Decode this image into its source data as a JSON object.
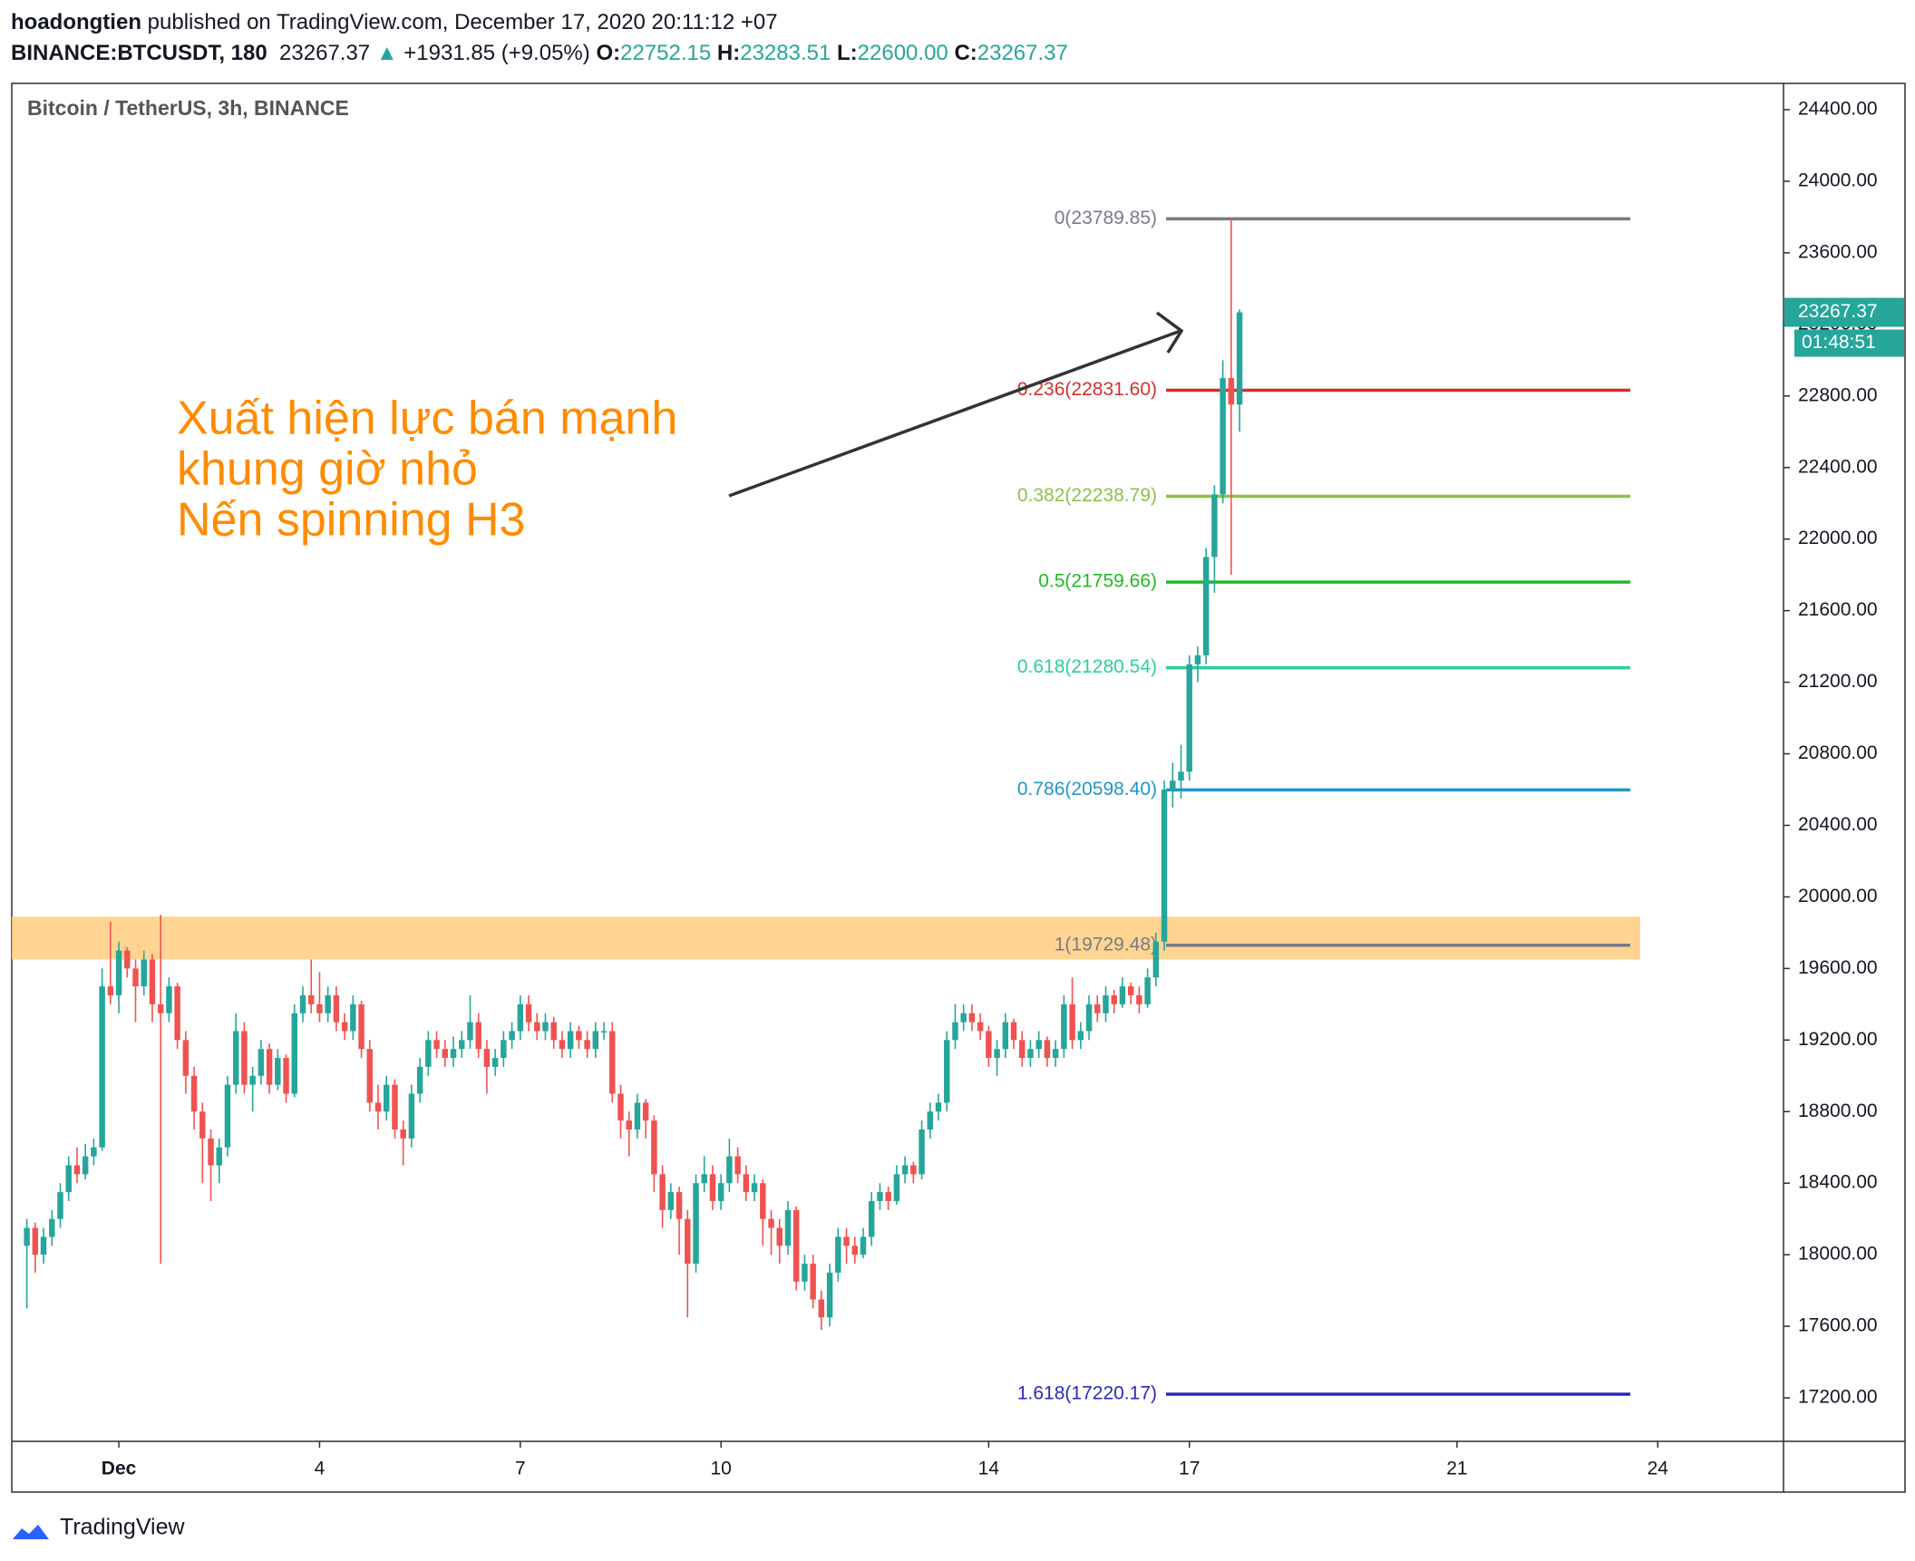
{
  "header": {
    "user": "hoadongtien",
    "published": "published on TradingView.com, December 17, 2020 20:11:12 +07",
    "symbol": "BINANCE:BTCUSDT, 180",
    "last": "23267.37",
    "arrow": "▲",
    "change": "+1931.85 (+9.05%)",
    "o_label": "O:",
    "open": "22752.15",
    "h_label": "H:",
    "high": "23283.51",
    "l_label": "L:",
    "low": "22600.00",
    "c_label": "C:",
    "close": "23267.37"
  },
  "chart_data": {
    "type": "candlestick",
    "title": "Bitcoin / TetherUS, 3h, BINANCE",
    "up_color": "#26a69a",
    "down_color": "#ef5350",
    "xlim": [
      -0.6,
      25.88
    ],
    "xticks": [
      {
        "value": 1,
        "label": "Dec"
      },
      4,
      7,
      10,
      14,
      17,
      21,
      24
    ],
    "ylim": [
      16957,
      24547
    ],
    "yticks": [
      {
        "value": 17200,
        "label": "17200.00"
      },
      {
        "value": 17600,
        "label": "17600.00"
      },
      {
        "value": 18000,
        "label": "18000.00"
      },
      {
        "value": 18400,
        "label": "18400.00"
      },
      {
        "value": 18800,
        "label": "18800.00"
      },
      {
        "value": 19200,
        "label": "19200.00"
      },
      {
        "value": 19600,
        "label": "19600.00"
      },
      {
        "value": 20000,
        "label": "20000.00"
      },
      {
        "value": 20400,
        "label": "20400.00"
      },
      {
        "value": 20800,
        "label": "20800.00"
      },
      {
        "value": 21200,
        "label": "21200.00"
      },
      {
        "value": 21600,
        "label": "21600.00"
      },
      {
        "value": 22000,
        "label": "22000.00"
      },
      {
        "value": 22400,
        "label": "22400.00"
      },
      {
        "value": 22800,
        "label": "22800.00"
      },
      {
        "value": 23200,
        "label": "23200.00"
      },
      {
        "value": 23600,
        "label": "23600.00"
      },
      {
        "value": 24000,
        "label": "24000.00"
      },
      {
        "value": 24400,
        "label": "24400.00"
      }
    ],
    "grid": false,
    "countdown": "01:48:51",
    "annotation": [
      "Xuất hiện lực bán mạnh",
      "khung giờ nhỏ",
      "Nến spinning H3"
    ],
    "annotation_color": "#ff8c00",
    "zone": [
      19650,
      19890
    ],
    "zone_color": "#ffcc80",
    "fib": [
      {
        "label": "0(23789.85)",
        "price": 23789.85,
        "color": "#787b86"
      },
      {
        "label": "0.236(22831.60)",
        "price": 22831.6,
        "color": "#d32f2f"
      },
      {
        "label": "0.382(22238.79)",
        "price": 22238.79,
        "color": "#8bc34a"
      },
      {
        "label": "0.5(21759.66)",
        "price": 21759.66,
        "color": "#22b922"
      },
      {
        "label": "0.618(21280.54)",
        "price": 21280.54,
        "color": "#2ccf9c"
      },
      {
        "label": "0.786(20598.40)",
        "price": 20598.4,
        "color": "#2196c8"
      },
      {
        "label": "1(19729.48)",
        "price": 19729.48,
        "color": "#787b86"
      },
      {
        "label": "1.618(17220.17)",
        "price": 17220.17,
        "color": "#2a2ab8"
      }
    ],
    "candles": [
      [
        -0.375,
        18050,
        18200,
        17700,
        18150
      ],
      [
        -0.25,
        18150,
        18180,
        17900,
        18000
      ],
      [
        -0.125,
        18000,
        18150,
        17950,
        18100
      ],
      [
        0,
        18100,
        18250,
        18050,
        18200
      ],
      [
        0.125,
        18200,
        18400,
        18150,
        18350
      ],
      [
        0.25,
        18350,
        18550,
        18300,
        18500
      ],
      [
        0.375,
        18500,
        18600,
        18400,
        18450
      ],
      [
        0.5,
        18450,
        18620,
        18420,
        18550
      ],
      [
        0.625,
        18550,
        18650,
        18500,
        18600
      ],
      [
        0.75,
        18600,
        19600,
        18580,
        19500
      ],
      [
        0.875,
        19500,
        19860,
        19400,
        19450
      ],
      [
        1,
        19450,
        19750,
        19350,
        19700
      ],
      [
        1.125,
        19700,
        19720,
        19550,
        19600
      ],
      [
        1.25,
        19600,
        19650,
        19300,
        19500
      ],
      [
        1.375,
        19500,
        19700,
        19450,
        19650
      ],
      [
        1.5,
        19650,
        19680,
        19300,
        19400
      ],
      [
        1.625,
        19400,
        19900,
        17950,
        19350
      ],
      [
        1.75,
        19350,
        19550,
        19300,
        19500
      ],
      [
        1.875,
        19500,
        19520,
        19150,
        19200
      ],
      [
        2,
        19200,
        19250,
        18900,
        19000
      ],
      [
        2.125,
        19000,
        19050,
        18700,
        18800
      ],
      [
        2.25,
        18800,
        18850,
        18400,
        18650
      ],
      [
        2.375,
        18650,
        18700,
        18300,
        18500
      ],
      [
        2.5,
        18500,
        18650,
        18400,
        18600
      ],
      [
        2.625,
        18600,
        19000,
        18550,
        18950
      ],
      [
        2.75,
        18950,
        19350,
        18900,
        19250
      ],
      [
        2.875,
        19250,
        19300,
        18900,
        18950
      ],
      [
        3,
        18950,
        19050,
        18800,
        19000
      ],
      [
        3.125,
        19000,
        19200,
        18950,
        19150
      ],
      [
        3.25,
        19150,
        19180,
        18900,
        18950
      ],
      [
        3.375,
        18950,
        19150,
        18920,
        19100
      ],
      [
        3.5,
        19100,
        19120,
        18850,
        18900
      ],
      [
        3.625,
        18900,
        19400,
        18880,
        19350
      ],
      [
        3.75,
        19350,
        19500,
        19300,
        19450
      ],
      [
        3.875,
        19450,
        19650,
        19350,
        19400
      ],
      [
        4,
        19400,
        19580,
        19300,
        19350
      ],
      [
        4.125,
        19350,
        19500,
        19300,
        19450
      ],
      [
        4.25,
        19450,
        19500,
        19250,
        19300
      ],
      [
        4.375,
        19300,
        19350,
        19200,
        19250
      ],
      [
        4.5,
        19250,
        19450,
        19200,
        19400
      ],
      [
        4.625,
        19400,
        19420,
        19100,
        19150
      ],
      [
        4.75,
        19150,
        19200,
        18800,
        18850
      ],
      [
        4.875,
        18850,
        18950,
        18700,
        18800
      ],
      [
        5,
        18800,
        19000,
        18750,
        18950
      ],
      [
        5.125,
        18950,
        18980,
        18650,
        18700
      ],
      [
        5.25,
        18700,
        18750,
        18500,
        18650
      ],
      [
        5.375,
        18650,
        18950,
        18600,
        18900
      ],
      [
        5.5,
        18900,
        19100,
        18850,
        19050
      ],
      [
        5.625,
        19050,
        19250,
        19000,
        19200
      ],
      [
        5.75,
        19200,
        19250,
        19100,
        19150
      ],
      [
        5.875,
        19150,
        19200,
        19050,
        19100
      ],
      [
        6,
        19100,
        19220,
        19050,
        19150
      ],
      [
        6.125,
        19150,
        19250,
        19100,
        19200
      ],
      [
        6.25,
        19200,
        19450,
        19150,
        19300
      ],
      [
        6.375,
        19300,
        19350,
        19100,
        19150
      ],
      [
        6.5,
        19150,
        19200,
        18900,
        19050
      ],
      [
        6.625,
        19050,
        19150,
        19000,
        19100
      ],
      [
        6.75,
        19100,
        19250,
        19050,
        19200
      ],
      [
        6.875,
        19200,
        19300,
        19150,
        19250
      ],
      [
        7,
        19250,
        19450,
        19200,
        19400
      ],
      [
        7.125,
        19400,
        19450,
        19250,
        19300
      ],
      [
        7.25,
        19300,
        19350,
        19200,
        19250
      ],
      [
        7.375,
        19250,
        19350,
        19200,
        19300
      ],
      [
        7.5,
        19300,
        19330,
        19150,
        19200
      ],
      [
        7.625,
        19200,
        19250,
        19100,
        19150
      ],
      [
        7.75,
        19150,
        19300,
        19100,
        19250
      ],
      [
        7.875,
        19250,
        19280,
        19150,
        19200
      ],
      [
        8,
        19200,
        19250,
        19100,
        19150
      ],
      [
        8.125,
        19150,
        19300,
        19100,
        19250
      ],
      [
        8.25,
        19250,
        19300,
        19200,
        19250
      ],
      [
        8.375,
        19250,
        19300,
        18850,
        18900
      ],
      [
        8.5,
        18900,
        18950,
        18650,
        18750
      ],
      [
        8.625,
        18750,
        18800,
        18550,
        18700
      ],
      [
        8.75,
        18700,
        18900,
        18650,
        18850
      ],
      [
        8.875,
        18850,
        18870,
        18650,
        18750
      ],
      [
        9,
        18750,
        18780,
        18350,
        18450
      ],
      [
        9.125,
        18450,
        18500,
        18150,
        18250
      ],
      [
        9.25,
        18250,
        18400,
        18200,
        18350
      ],
      [
        9.375,
        18350,
        18380,
        18000,
        18200
      ],
      [
        9.5,
        18200,
        18250,
        17650,
        17950
      ],
      [
        9.625,
        17950,
        18450,
        17900,
        18400
      ],
      [
        9.75,
        18400,
        18550,
        18350,
        18450
      ],
      [
        9.875,
        18450,
        18500,
        18250,
        18300
      ],
      [
        10,
        18300,
        18450,
        18250,
        18400
      ],
      [
        10.125,
        18400,
        18650,
        18350,
        18550
      ],
      [
        10.25,
        18550,
        18600,
        18400,
        18450
      ],
      [
        10.375,
        18450,
        18500,
        18300,
        18350
      ],
      [
        10.5,
        18350,
        18450,
        18300,
        18400
      ],
      [
        10.625,
        18400,
        18420,
        18050,
        18200
      ],
      [
        10.75,
        18200,
        18250,
        18000,
        18150
      ],
      [
        10.875,
        18150,
        18200,
        17950,
        18050
      ],
      [
        11,
        18050,
        18300,
        18000,
        18250
      ],
      [
        11.125,
        18250,
        18270,
        17800,
        17850
      ],
      [
        11.25,
        17850,
        18000,
        17800,
        17950
      ],
      [
        11.375,
        17950,
        18000,
        17700,
        17750
      ],
      [
        11.5,
        17750,
        17800,
        17580,
        17650
      ],
      [
        11.625,
        17650,
        17950,
        17600,
        17900
      ],
      [
        11.75,
        17900,
        18150,
        17850,
        18100
      ],
      [
        11.875,
        18100,
        18150,
        17950,
        18050
      ],
      [
        12,
        18050,
        18100,
        17950,
        18000
      ],
      [
        12.125,
        18000,
        18150,
        17980,
        18100
      ],
      [
        12.25,
        18100,
        18350,
        18050,
        18300
      ],
      [
        12.375,
        18300,
        18400,
        18250,
        18350
      ],
      [
        12.5,
        18350,
        18380,
        18250,
        18300
      ],
      [
        12.625,
        18300,
        18500,
        18280,
        18450
      ],
      [
        12.75,
        18450,
        18550,
        18400,
        18500
      ],
      [
        12.875,
        18500,
        18520,
        18400,
        18450
      ],
      [
        13,
        18450,
        18750,
        18420,
        18700
      ],
      [
        13.125,
        18700,
        18850,
        18650,
        18800
      ],
      [
        13.25,
        18800,
        18900,
        18750,
        18850
      ],
      [
        13.375,
        18850,
        19250,
        18800,
        19200
      ],
      [
        13.5,
        19200,
        19400,
        19150,
        19300
      ],
      [
        13.625,
        19300,
        19400,
        19250,
        19350
      ],
      [
        13.75,
        19350,
        19400,
        19250,
        19300
      ],
      [
        13.875,
        19300,
        19350,
        19200,
        19250
      ],
      [
        14,
        19250,
        19280,
        19050,
        19100
      ],
      [
        14.125,
        19100,
        19200,
        19000,
        19150
      ],
      [
        14.25,
        19150,
        19350,
        19100,
        19300
      ],
      [
        14.375,
        19300,
        19320,
        19150,
        19200
      ],
      [
        14.5,
        19200,
        19250,
        19050,
        19100
      ],
      [
        14.625,
        19100,
        19200,
        19050,
        19150
      ],
      [
        14.75,
        19150,
        19250,
        19100,
        19200
      ],
      [
        14.875,
        19200,
        19220,
        19050,
        19100
      ],
      [
        15,
        19100,
        19200,
        19050,
        19150
      ],
      [
        15.125,
        19150,
        19450,
        19100,
        19400
      ],
      [
        15.25,
        19400,
        19550,
        19150,
        19200
      ],
      [
        15.375,
        19200,
        19300,
        19150,
        19250
      ],
      [
        15.5,
        19250,
        19450,
        19200,
        19400
      ],
      [
        15.625,
        19400,
        19450,
        19300,
        19350
      ],
      [
        15.75,
        19350,
        19500,
        19300,
        19450
      ],
      [
        15.875,
        19450,
        19480,
        19350,
        19400
      ],
      [
        16,
        19400,
        19550,
        19380,
        19500
      ],
      [
        16.125,
        19500,
        19520,
        19400,
        19450
      ],
      [
        16.25,
        19450,
        19500,
        19350,
        19400
      ],
      [
        16.375,
        19400,
        19600,
        19380,
        19550
      ],
      [
        16.5,
        19550,
        19800,
        19500,
        19750
      ],
      [
        16.625,
        19750,
        20650,
        19700,
        20600
      ],
      [
        16.75,
        20600,
        20750,
        20500,
        20650
      ],
      [
        16.875,
        20650,
        20850,
        20550,
        20700
      ],
      [
        17,
        20700,
        21350,
        20650,
        21300
      ],
      [
        17.125,
        21300,
        21400,
        21200,
        21350
      ],
      [
        17.25,
        21350,
        21950,
        21300,
        21900
      ],
      [
        17.375,
        21900,
        22300,
        21700,
        22250
      ],
      [
        17.5,
        22250,
        23000,
        22200,
        22900
      ],
      [
        17.625,
        22900,
        23789.85,
        21800,
        22752.15
      ],
      [
        17.75,
        22752.15,
        23283.51,
        22600,
        23267.37
      ]
    ]
  },
  "footer": {
    "brand": "TradingView"
  }
}
